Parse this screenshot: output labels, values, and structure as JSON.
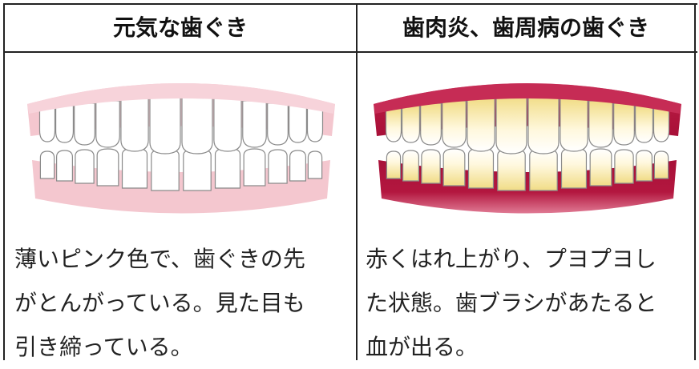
{
  "table": {
    "rows": [
      [
        "元気な歯ぐき",
        "歯肉炎、歯周病の歯ぐき"
      ],
      [
        {
          "lines": [
            "薄いピンク色で、歯ぐきの先",
            "がとんがっている。見た目も",
            "引き締っている。"
          ]
        },
        {
          "lines": [
            "赤くはれ上がり、プヨプヨし",
            "た状態。歯ブラシがあたると",
            "血が出る。"
          ]
        }
      ]
    ]
  }
}
